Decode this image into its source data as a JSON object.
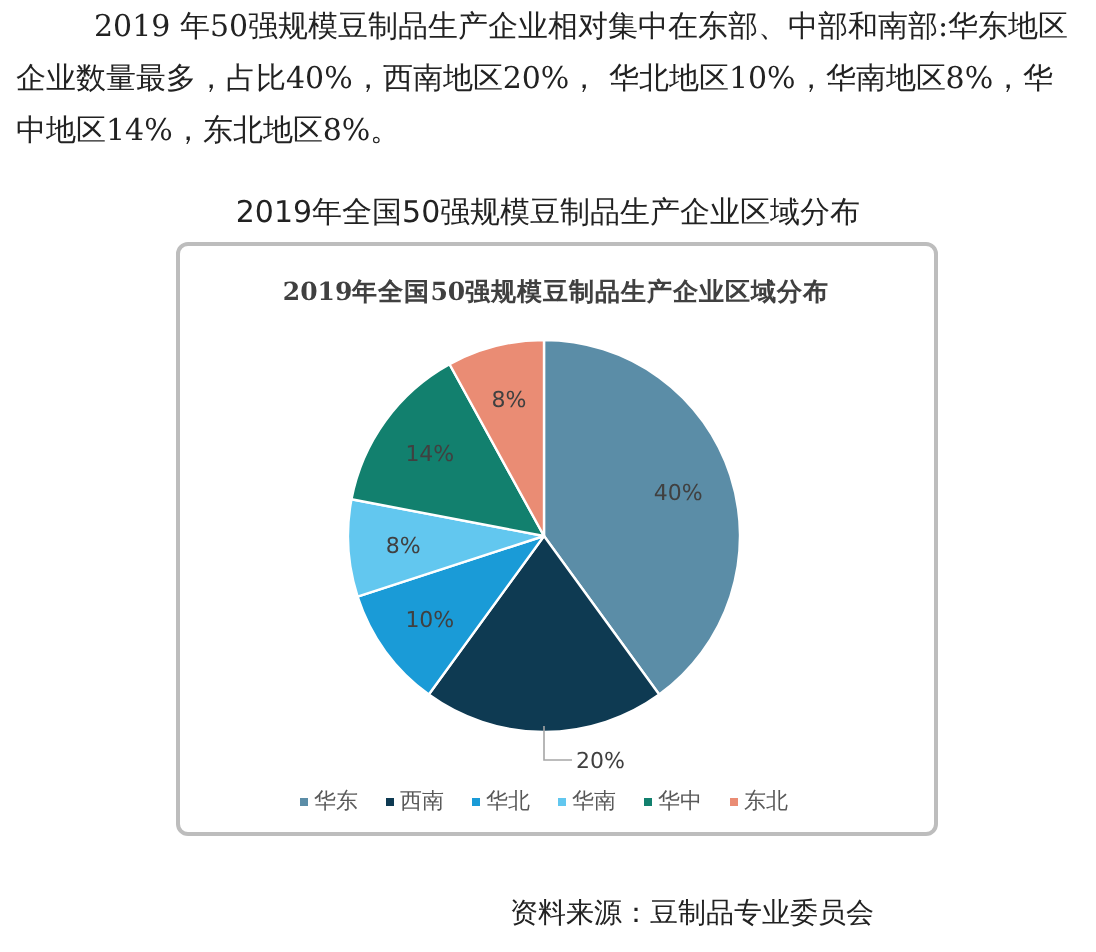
{
  "chart_data": {
    "type": "pie",
    "title": "2019年全国50强规模豆制品生产企业区域分布",
    "categories": [
      "华东",
      "西南",
      "华北",
      "华南",
      "华中",
      "东北"
    ],
    "values": [
      40,
      20,
      10,
      8,
      14,
      8
    ],
    "colors": [
      "#5b8da7",
      "#0e3a52",
      "#1a9bd7",
      "#62c7ef",
      "#12806e",
      "#ea8c74"
    ],
    "value_labels": [
      "40%",
      "20%",
      "10%",
      "8%",
      "14%",
      "8%"
    ],
    "legend": "bottom",
    "annotations": [
      "2019 年50强规模豆制品生产企业相对集中在东部、中部和南部:华东地区企业数量最多，占比40%，西南地区20%， 华北地区10%，华南地区8%，华中地区14%，东北地区8%。",
      "2019年全国50强规模豆制品生产企业区域分布",
      "资料来源：豆制品专业委员会"
    ]
  }
}
